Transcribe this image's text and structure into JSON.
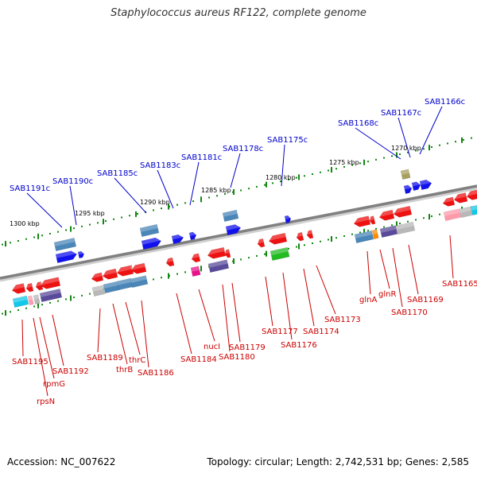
{
  "title": "Staphylococcus aureus RF122, complete genome",
  "footer": {
    "accession": "Accession: NC_007622",
    "topology": "Topology: circular; Length: 2,742,531 bp; Genes: 2,585"
  },
  "colors": {
    "backbone": "#808080",
    "top_label": "#0000cc",
    "bottom_label": "#cc0000",
    "tick": "#118811",
    "gene_red": "#ee1111",
    "gene_blue": "#1111ee",
    "gene_steel": "#4a86b8",
    "gene_green": "#22bb22",
    "gene_purple": "#5a4a9a",
    "gene_gray": "#b8b8b8",
    "gene_cyan": "#11c8e8",
    "gene_pink": "#ff9aaa",
    "gene_olive": "#a8a060",
    "gene_magenta": "#e8118a",
    "gene_orange": "#ff8c00"
  },
  "kbp_labels": [
    "1300 kbp",
    "1295 kbp",
    "1290 kbp",
    "1285 kbp",
    "1280 kbp",
    "1275 kbp",
    "1270 kbp"
  ],
  "top_labels": [
    "SAB1191c",
    "SAB1190c",
    "SAB1185c",
    "SAB1183c",
    "SAB1181c",
    "SAB1178c",
    "SAB1175c",
    "SAB1168c",
    "SAB1167c",
    "SAB1166c"
  ],
  "bottom_labels": [
    "SAB1195",
    "rpsN",
    "rpmG",
    "SAB1192",
    "SAB1189",
    "thrB",
    "thrC",
    "SAB1186",
    "SAB1184",
    "nucI",
    "SAB1180",
    "SAB1179",
    "SAB1177",
    "SAB1176",
    "SAB1174",
    "SAB1173",
    "glnA",
    "glnR",
    "SAB1170",
    "SAB1169",
    "SAB1165"
  ]
}
